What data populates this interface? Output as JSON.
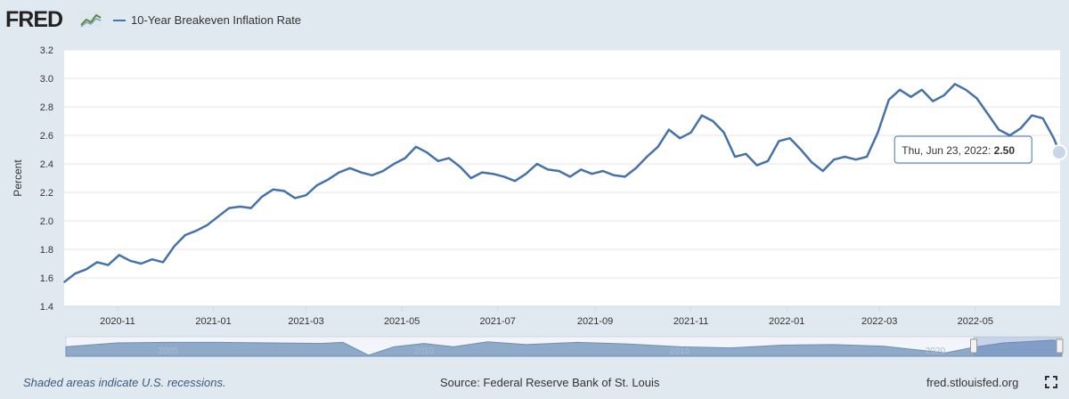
{
  "header": {
    "logo_text": "FRED",
    "logo_icon": "fred-chart-icon",
    "legend_label": "10-Year Breakeven Inflation Rate"
  },
  "tooltip": {
    "date": "Thu, Jun 23, 2022",
    "value": "2.50"
  },
  "navigator": {
    "labels": [
      "2005",
      "2010",
      "2015",
      "2020"
    ]
  },
  "footer": {
    "recession_note": "Shaded areas indicate U.S. recessions.",
    "source": "Source: Federal Reserve Bank of St. Louis",
    "site": "fred.stlouisfed.org"
  },
  "colors": {
    "line": "#4572a7",
    "background": "#e1e9f0",
    "plot": "#ffffff",
    "navigator_fill": "#8faac9"
  },
  "chart_data": {
    "type": "line",
    "title": "",
    "xlabel": "",
    "ylabel": "Percent",
    "ylim": [
      1.4,
      3.2
    ],
    "yticks": [
      1.4,
      1.6,
      1.8,
      2.0,
      2.2,
      2.4,
      2.6,
      2.8,
      3.0,
      3.2
    ],
    "x_tick_labels": [
      "2020-11",
      "2021-01",
      "2021-03",
      "2021-05",
      "2021-07",
      "2021-09",
      "2021-11",
      "2022-01",
      "2022-03",
      "2022-05"
    ],
    "x_tick_dates": [
      "2020-11-01",
      "2021-01-01",
      "2021-03-01",
      "2021-05-01",
      "2021-07-01",
      "2021-09-01",
      "2021-11-01",
      "2022-01-01",
      "2022-03-01",
      "2022-05-01"
    ],
    "x_range": [
      "2020-09-28",
      "2022-06-24"
    ],
    "grid": true,
    "legend": "top-left",
    "series": [
      {
        "name": "10-Year Breakeven Inflation Rate",
        "points": [
          [
            "2020-09-28",
            1.57
          ],
          [
            "2020-10-05",
            1.63
          ],
          [
            "2020-10-12",
            1.66
          ],
          [
            "2020-10-19",
            1.71
          ],
          [
            "2020-10-26",
            1.69
          ],
          [
            "2020-11-02",
            1.76
          ],
          [
            "2020-11-09",
            1.72
          ],
          [
            "2020-11-16",
            1.7
          ],
          [
            "2020-11-23",
            1.73
          ],
          [
            "2020-11-30",
            1.71
          ],
          [
            "2020-12-07",
            1.82
          ],
          [
            "2020-12-14",
            1.9
          ],
          [
            "2020-12-21",
            1.93
          ],
          [
            "2020-12-28",
            1.97
          ],
          [
            "2021-01-04",
            2.03
          ],
          [
            "2021-01-11",
            2.09
          ],
          [
            "2021-01-18",
            2.1
          ],
          [
            "2021-01-25",
            2.09
          ],
          [
            "2021-02-01",
            2.17
          ],
          [
            "2021-02-08",
            2.22
          ],
          [
            "2021-02-15",
            2.21
          ],
          [
            "2021-02-22",
            2.16
          ],
          [
            "2021-03-01",
            2.18
          ],
          [
            "2021-03-08",
            2.25
          ],
          [
            "2021-03-15",
            2.29
          ],
          [
            "2021-03-22",
            2.34
          ],
          [
            "2021-03-29",
            2.37
          ],
          [
            "2021-04-05",
            2.34
          ],
          [
            "2021-04-12",
            2.32
          ],
          [
            "2021-04-19",
            2.35
          ],
          [
            "2021-04-26",
            2.4
          ],
          [
            "2021-05-03",
            2.44
          ],
          [
            "2021-05-10",
            2.52
          ],
          [
            "2021-05-17",
            2.48
          ],
          [
            "2021-05-24",
            2.42
          ],
          [
            "2021-05-31",
            2.44
          ],
          [
            "2021-06-07",
            2.38
          ],
          [
            "2021-06-14",
            2.3
          ],
          [
            "2021-06-21",
            2.34
          ],
          [
            "2021-06-28",
            2.33
          ],
          [
            "2021-07-05",
            2.31
          ],
          [
            "2021-07-12",
            2.28
          ],
          [
            "2021-07-19",
            2.33
          ],
          [
            "2021-07-26",
            2.4
          ],
          [
            "2021-08-02",
            2.36
          ],
          [
            "2021-08-09",
            2.35
          ],
          [
            "2021-08-16",
            2.31
          ],
          [
            "2021-08-23",
            2.36
          ],
          [
            "2021-08-30",
            2.33
          ],
          [
            "2021-09-06",
            2.35
          ],
          [
            "2021-09-13",
            2.32
          ],
          [
            "2021-09-20",
            2.31
          ],
          [
            "2021-09-27",
            2.37
          ],
          [
            "2021-10-04",
            2.45
          ],
          [
            "2021-10-11",
            2.52
          ],
          [
            "2021-10-18",
            2.64
          ],
          [
            "2021-10-25",
            2.58
          ],
          [
            "2021-11-01",
            2.62
          ],
          [
            "2021-11-08",
            2.74
          ],
          [
            "2021-11-15",
            2.7
          ],
          [
            "2021-11-22",
            2.62
          ],
          [
            "2021-11-29",
            2.45
          ],
          [
            "2021-12-06",
            2.47
          ],
          [
            "2021-12-13",
            2.39
          ],
          [
            "2021-12-20",
            2.42
          ],
          [
            "2021-12-27",
            2.56
          ],
          [
            "2022-01-03",
            2.58
          ],
          [
            "2022-01-10",
            2.5
          ],
          [
            "2022-01-17",
            2.41
          ],
          [
            "2022-01-24",
            2.35
          ],
          [
            "2022-01-31",
            2.43
          ],
          [
            "2022-02-07",
            2.45
          ],
          [
            "2022-02-14",
            2.43
          ],
          [
            "2022-02-21",
            2.45
          ],
          [
            "2022-02-28",
            2.62
          ],
          [
            "2022-03-07",
            2.85
          ],
          [
            "2022-03-14",
            2.92
          ],
          [
            "2022-03-21",
            2.87
          ],
          [
            "2022-03-28",
            2.92
          ],
          [
            "2022-04-04",
            2.84
          ],
          [
            "2022-04-11",
            2.88
          ],
          [
            "2022-04-18",
            2.96
          ],
          [
            "2022-04-25",
            2.92
          ],
          [
            "2022-05-02",
            2.86
          ],
          [
            "2022-05-09",
            2.75
          ],
          [
            "2022-05-16",
            2.64
          ],
          [
            "2022-05-23",
            2.6
          ],
          [
            "2022-05-30",
            2.65
          ],
          [
            "2022-06-06",
            2.74
          ],
          [
            "2022-06-13",
            2.72
          ],
          [
            "2022-06-20",
            2.58
          ],
          [
            "2022-06-23",
            2.5
          ]
        ]
      }
    ],
    "navigator_series": [
      [
        "2003-01-01",
        1.7
      ],
      [
        "2004-01-01",
        2.4
      ],
      [
        "2005-01-01",
        2.5
      ],
      [
        "2006-01-01",
        2.5
      ],
      [
        "2007-01-01",
        2.4
      ],
      [
        "2008-01-01",
        2.3
      ],
      [
        "2008-06-01",
        2.5
      ],
      [
        "2008-12-01",
        0.2
      ],
      [
        "2009-06-01",
        1.7
      ],
      [
        "2010-01-01",
        2.3
      ],
      [
        "2010-08-01",
        1.7
      ],
      [
        "2011-04-01",
        2.6
      ],
      [
        "2012-01-01",
        2.1
      ],
      [
        "2013-01-01",
        2.5
      ],
      [
        "2014-01-01",
        2.2
      ],
      [
        "2015-01-01",
        1.7
      ],
      [
        "2016-01-01",
        1.5
      ],
      [
        "2017-01-01",
        2.0
      ],
      [
        "2018-01-01",
        2.1
      ],
      [
        "2019-01-01",
        1.8
      ],
      [
        "2020-03-15",
        0.6
      ],
      [
        "2020-09-28",
        1.6
      ],
      [
        "2021-05-01",
        2.4
      ],
      [
        "2022-04-20",
        2.9
      ],
      [
        "2022-06-23",
        2.5
      ]
    ]
  }
}
